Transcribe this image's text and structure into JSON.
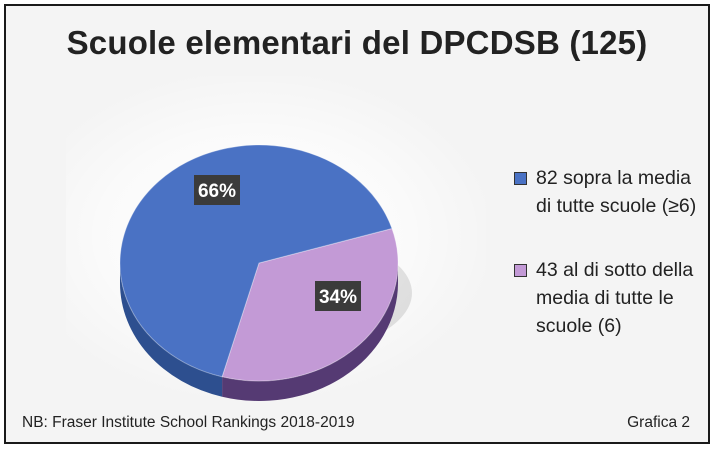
{
  "chart_data": {
    "type": "pie",
    "title": "Scuole elementari del DPCDSB (125)",
    "total": 125,
    "slices": [
      {
        "count": 82,
        "percent": 66,
        "label": "66%",
        "legend": "82 sopra la media di tutte scuole (≥6)",
        "color": "#4a72c4",
        "side_color": "#2d4f8f"
      },
      {
        "count": 43,
        "percent": 34,
        "label": "34%",
        "legend": "43 al di sotto della media di tutte le scuole (6)",
        "color": "#c39ad6",
        "side_color": "#553a73"
      }
    ],
    "legend_position": "right"
  },
  "footnote": "NB: Fraser Institute School Rankings 2018-2019",
  "figure_label": "Grafica 2"
}
